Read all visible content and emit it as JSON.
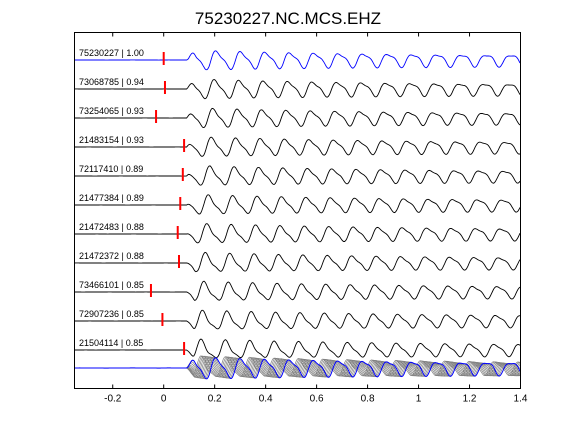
{
  "chart_data": {
    "type": "line",
    "title": "75230227.NC.MCS.EHZ",
    "xlabel": "",
    "ylabel": "",
    "xlim": [
      -0.35,
      1.4
    ],
    "x_ticks": [
      "-0.2",
      "0",
      "0.2",
      "0.4",
      "0.6",
      "0.8",
      "1",
      "1.2",
      "1.4"
    ],
    "x_tick_values": [
      -0.2,
      0,
      0.2,
      0.4,
      0.6,
      0.8,
      1.0,
      1.2,
      1.4
    ],
    "grid": false,
    "colors": {
      "reference_trace": "#0000ff",
      "trace": "#000000",
      "pick_marker": "#ff0000",
      "stack_trace": "#808080",
      "stack_reference": "#0000ff"
    },
    "series": [
      {
        "name": "75230227 | 1.00",
        "pick": 0.0,
        "reference": true
      },
      {
        "name": "73068785 | 0.94",
        "pick": 0.005
      },
      {
        "name": "73254065 | 0.93",
        "pick": -0.03
      },
      {
        "name": "21483154 | 0.93",
        "pick": 0.08
      },
      {
        "name": "72117410 | 0.89",
        "pick": 0.075
      },
      {
        "name": "21477384 | 0.89",
        "pick": 0.065
      },
      {
        "name": "21472483 | 0.88",
        "pick": 0.055
      },
      {
        "name": "21472372 | 0.88",
        "pick": 0.06
      },
      {
        "name": "73466101 | 0.85",
        "pick": -0.05
      },
      {
        "name": "72907236 | 0.85",
        "pick": -0.005
      },
      {
        "name": "21504114 | 0.85",
        "pick": 0.08
      }
    ],
    "stack": {
      "traces": 11,
      "reference_overlay": true
    }
  }
}
